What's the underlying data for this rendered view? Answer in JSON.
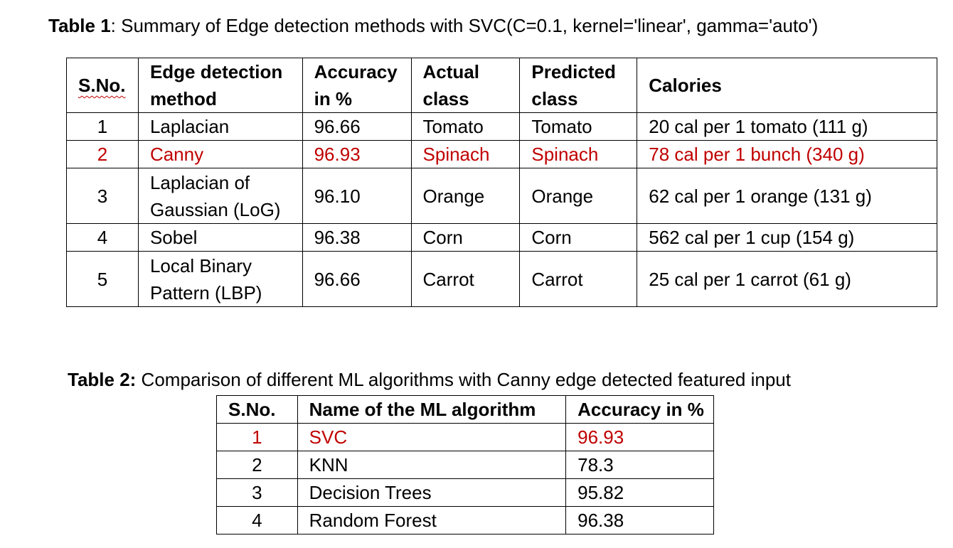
{
  "table1": {
    "caption_label": "Table 1",
    "caption_text": ": Summary of Edge detection methods with SVC(C=0.1, kernel='linear', gamma='auto')",
    "headers": [
      "S.No.",
      "Edge detection method",
      "Accuracy in %",
      "Actual class",
      "Predicted class",
      "Calories"
    ],
    "rows": [
      {
        "sno": "1",
        "method": "Laplacian",
        "accuracy": "96.66",
        "actual": "Tomato",
        "predicted": "Tomato",
        "calories": "20 cal per 1 tomato (111 g)",
        "highlight": false
      },
      {
        "sno": "2",
        "method": "Canny",
        "accuracy": "96.93",
        "actual": "Spinach",
        "predicted": "Spinach",
        "calories": "78 cal per 1 bunch (340 g)",
        "highlight": true
      },
      {
        "sno": "3",
        "method": "Laplacian of Gaussian (LoG)",
        "accuracy": "96.10",
        "actual": "Orange",
        "predicted": "Orange",
        "calories": "62 cal per 1 orange (131 g)",
        "highlight": false
      },
      {
        "sno": "4",
        "method": "Sobel",
        "accuracy": "96.38",
        "actual": "Corn",
        "predicted": "Corn",
        "calories": "562 cal per 1 cup (154 g)",
        "highlight": false
      },
      {
        "sno": "5",
        "method": "Local Binary Pattern (LBP)",
        "accuracy": "96.66",
        "actual": "Carrot",
        "predicted": "Carrot",
        "calories": "25 cal per 1 carrot (61 g)",
        "highlight": false
      }
    ]
  },
  "table2": {
    "caption_label": "Table 2:",
    "caption_text": " Comparison of different ML algorithms with Canny edge detected featured input",
    "headers": [
      "S.No.",
      "Name of the ML algorithm",
      "Accuracy in %"
    ],
    "rows": [
      {
        "sno": "1",
        "algorithm": "SVC",
        "accuracy": "96.93",
        "highlight": true
      },
      {
        "sno": "2",
        "algorithm": "KNN",
        "accuracy": "78.3",
        "highlight": false
      },
      {
        "sno": "3",
        "algorithm": "Decision Trees",
        "accuracy": "95.82",
        "highlight": false
      },
      {
        "sno": "4",
        "algorithm": "Random Forest",
        "accuracy": "96.38",
        "highlight": false
      }
    ]
  },
  "colors": {
    "highlight_text": "#c00000",
    "text": "#000000",
    "border": "#000000"
  }
}
